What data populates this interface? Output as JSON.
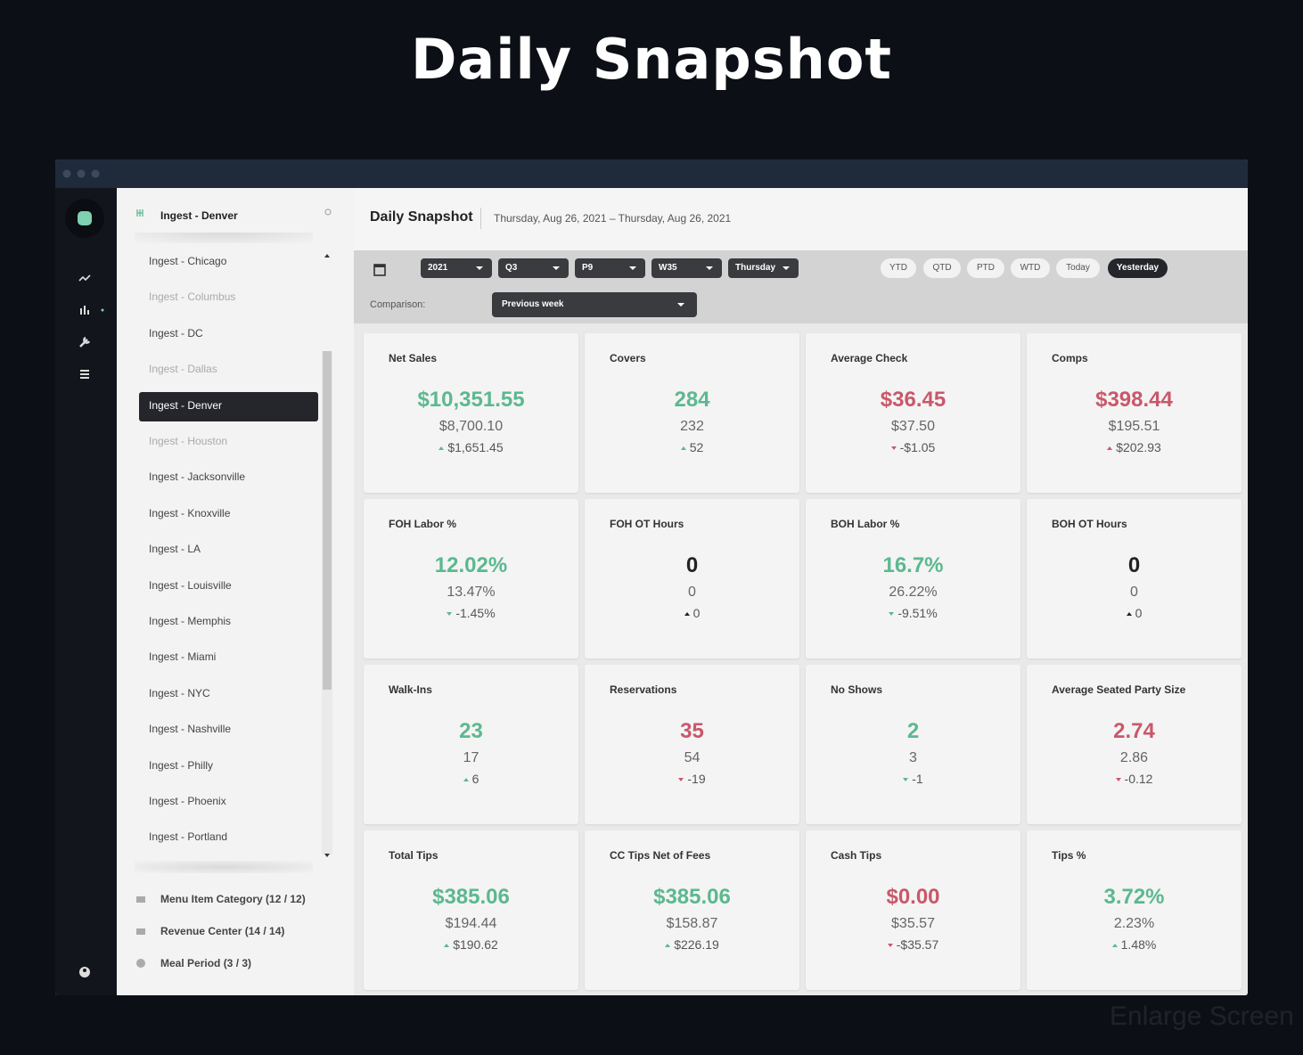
{
  "page_title": "Daily Snapshot",
  "background_hint": "Enlarge Screen",
  "sidebar": {
    "header": "Ingest - Denver",
    "locations": [
      {
        "name": "Ingest - Chicago",
        "muted": false
      },
      {
        "name": "Ingest - Columbus",
        "muted": true
      },
      {
        "name": "Ingest - DC",
        "muted": false
      },
      {
        "name": "Ingest - Dallas",
        "muted": true
      },
      {
        "name": "Ingest - Denver",
        "muted": false,
        "selected": true
      },
      {
        "name": "Ingest - Houston",
        "muted": true
      },
      {
        "name": "Ingest - Jacksonville",
        "muted": false
      },
      {
        "name": "Ingest - Knoxville",
        "muted": false
      },
      {
        "name": "Ingest - LA",
        "muted": false
      },
      {
        "name": "Ingest - Louisville",
        "muted": false
      },
      {
        "name": "Ingest - Memphis",
        "muted": false
      },
      {
        "name": "Ingest - Miami",
        "muted": false
      },
      {
        "name": "Ingest - NYC",
        "muted": false
      },
      {
        "name": "Ingest - Nashville",
        "muted": false
      },
      {
        "name": "Ingest - Philly",
        "muted": false
      },
      {
        "name": "Ingest - Phoenix",
        "muted": false
      },
      {
        "name": "Ingest - Portland",
        "muted": false
      }
    ],
    "filters": [
      "Menu Item Category (12 / 12)",
      "Revenue Center (14 / 14)",
      "Meal Period (3 / 3)"
    ]
  },
  "header": {
    "title": "Daily Snapshot",
    "date_range": "Thursday, Aug 26, 2021 – Thursday, Aug 26, 2021"
  },
  "controls": {
    "dropdowns": [
      "2021",
      "Q3",
      "P9",
      "W35",
      "Thursday"
    ],
    "periods": [
      {
        "label": "YTD",
        "active": false
      },
      {
        "label": "QTD",
        "active": false
      },
      {
        "label": "PTD",
        "active": false
      },
      {
        "label": "WTD",
        "active": false
      },
      {
        "label": "Today",
        "active": false
      },
      {
        "label": "Yesterday",
        "active": true
      }
    ],
    "comparison_label": "Comparison:",
    "comparison_value": "Previous week"
  },
  "cards": [
    {
      "label": "Net Sales",
      "value": "$10,351.55",
      "previous": "$8,700.10",
      "delta": "$1,651.45",
      "trend": "up",
      "tone": "good"
    },
    {
      "label": "Covers",
      "value": "284",
      "previous": "232",
      "delta": "52",
      "trend": "up",
      "tone": "good"
    },
    {
      "label": "Average Check",
      "value": "$36.45",
      "previous": "$37.50",
      "delta": "-$1.05",
      "trend": "down",
      "tone": "bad"
    },
    {
      "label": "Comps",
      "value": "$398.44",
      "previous": "$195.51",
      "delta": "$202.93",
      "trend": "up",
      "tone": "bad"
    },
    {
      "label": "FOH Labor %",
      "value": "12.02%",
      "previous": "13.47%",
      "delta": "-1.45%",
      "trend": "down",
      "tone": "good"
    },
    {
      "label": "FOH OT Hours",
      "value": "0",
      "previous": "0",
      "delta": "0",
      "trend": "up",
      "tone": "neutral"
    },
    {
      "label": "BOH Labor %",
      "value": "16.7%",
      "previous": "26.22%",
      "delta": "-9.51%",
      "trend": "down",
      "tone": "good"
    },
    {
      "label": "BOH OT Hours",
      "value": "0",
      "previous": "0",
      "delta": "0",
      "trend": "up",
      "tone": "neutral"
    },
    {
      "label": "Walk-Ins",
      "value": "23",
      "previous": "17",
      "delta": "6",
      "trend": "up",
      "tone": "good"
    },
    {
      "label": "Reservations",
      "value": "35",
      "previous": "54",
      "delta": "-19",
      "trend": "down",
      "tone": "bad"
    },
    {
      "label": "No Shows",
      "value": "2",
      "previous": "3",
      "delta": "-1",
      "trend": "down",
      "tone": "good"
    },
    {
      "label": "Average Seated Party Size",
      "value": "2.74",
      "previous": "2.86",
      "delta": "-0.12",
      "trend": "down",
      "tone": "bad"
    },
    {
      "label": "Total Tips",
      "value": "$385.06",
      "previous": "$194.44",
      "delta": "$190.62",
      "trend": "up",
      "tone": "good"
    },
    {
      "label": "CC Tips Net of Fees",
      "value": "$385.06",
      "previous": "$158.87",
      "delta": "$226.19",
      "trend": "up",
      "tone": "good"
    },
    {
      "label": "Cash Tips",
      "value": "$0.00",
      "previous": "$35.57",
      "delta": "-$35.57",
      "trend": "down",
      "tone": "bad"
    },
    {
      "label": "Tips %",
      "value": "3.72%",
      "previous": "2.23%",
      "delta": "1.48%",
      "trend": "up",
      "tone": "good"
    }
  ]
}
